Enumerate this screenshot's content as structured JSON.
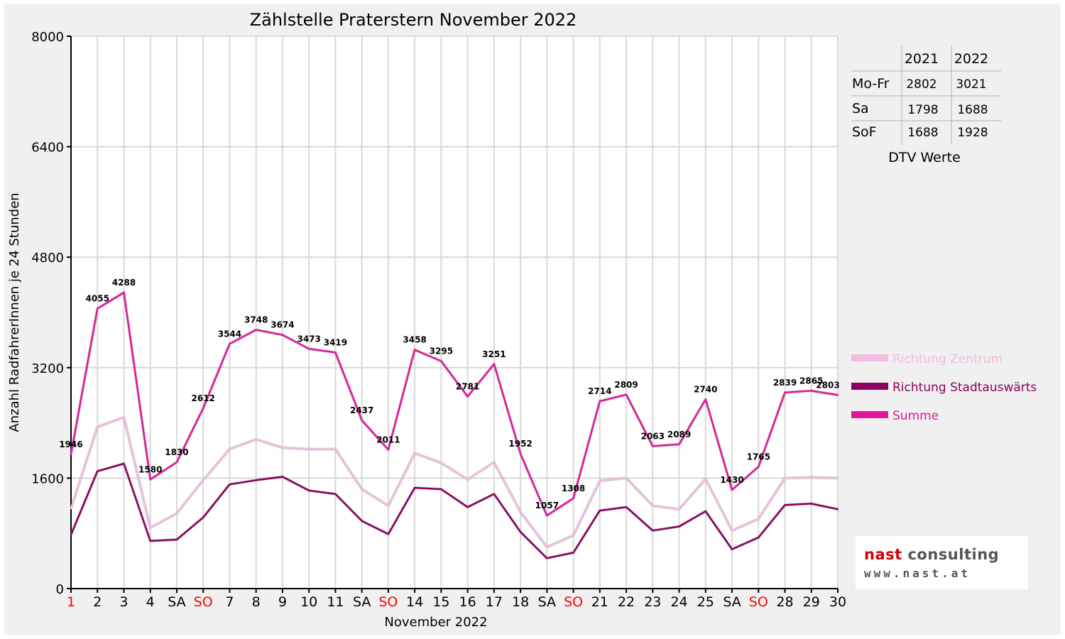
{
  "chart_data": {
    "type": "line",
    "title": "Zählstelle Praterstern November 2022",
    "xlabel": "November 2022",
    "ylabel": "Anzahl RadfahrerInnen je 24 Stunden",
    "ylim": [
      0,
      8000
    ],
    "yticks": [
      "0",
      "1600",
      "3200",
      "4800",
      "6400",
      "8000"
    ],
    "categories": [
      "1",
      "2",
      "3",
      "4",
      "SA",
      "SO",
      "7",
      "8",
      "9",
      "10",
      "11",
      "SA",
      "SO",
      "14",
      "15",
      "16",
      "17",
      "18",
      "SA",
      "SO",
      "21",
      "22",
      "23",
      "24",
      "25",
      "SA",
      "SO",
      "28",
      "29",
      "30"
    ],
    "red_categories": [
      0,
      5,
      12,
      19,
      26
    ],
    "grid": true,
    "legend_position": "right",
    "series": [
      {
        "name": "Richtung Zentrum",
        "color": "#f0bce0",
        "values": [
          1160,
          2340,
          2480,
          880,
          1090,
          1570,
          2020,
          2160,
          2040,
          2020,
          2020,
          1440,
          1200,
          1960,
          1820,
          1580,
          1830,
          1110,
          600,
          770,
          1560,
          1600,
          1200,
          1150,
          1590,
          840,
          1010,
          1600,
          1610,
          1600
        ]
      },
      {
        "name": "Richtung Stadtauswärts",
        "color": "#8a0060",
        "values": [
          780,
          1700,
          1810,
          690,
          710,
          1030,
          1510,
          1570,
          1620,
          1420,
          1370,
          980,
          790,
          1460,
          1440,
          1180,
          1370,
          820,
          440,
          520,
          1130,
          1180,
          840,
          900,
          1120,
          570,
          740,
          1210,
          1230,
          1150
        ]
      },
      {
        "name": "Summe",
        "color": "#e0199a",
        "values": [
          1946,
          4055,
          4288,
          1580,
          1830,
          2612,
          3544,
          3748,
          3674,
          3473,
          3419,
          2437,
          2011,
          3458,
          3295,
          2781,
          3251,
          1952,
          1057,
          1308,
          2714,
          2809,
          2063,
          2089,
          2740,
          1430,
          1765,
          2839,
          2865,
          2803
        ],
        "data_labels": [
          "1946",
          "4055",
          "4288",
          "1580",
          "1830",
          "2612",
          "3544",
          "3748",
          "3674",
          "3473",
          "3419",
          "2437",
          "2011",
          "3458",
          "3295",
          "2781",
          "3251",
          "1952",
          "1057",
          "1308",
          "2714",
          "2809",
          "2063",
          "2089",
          "2740",
          "1430",
          "1765",
          "2839",
          "2865",
          "2803"
        ]
      }
    ]
  },
  "dtv_table": {
    "caption": "DTV Werte",
    "columns": [
      "2021",
      "2022"
    ],
    "rows": [
      {
        "label": "Mo-Fr",
        "v2021": "2802",
        "v2022": "3021"
      },
      {
        "label": "Sa",
        "v2021": "1798",
        "v2022": "1688"
      },
      {
        "label": "SoF",
        "v2021": "1688",
        "v2022": "1928"
      }
    ]
  },
  "logo": {
    "name_part1": "nast",
    "name_part2": " consulting",
    "url": "www.nast.at"
  }
}
